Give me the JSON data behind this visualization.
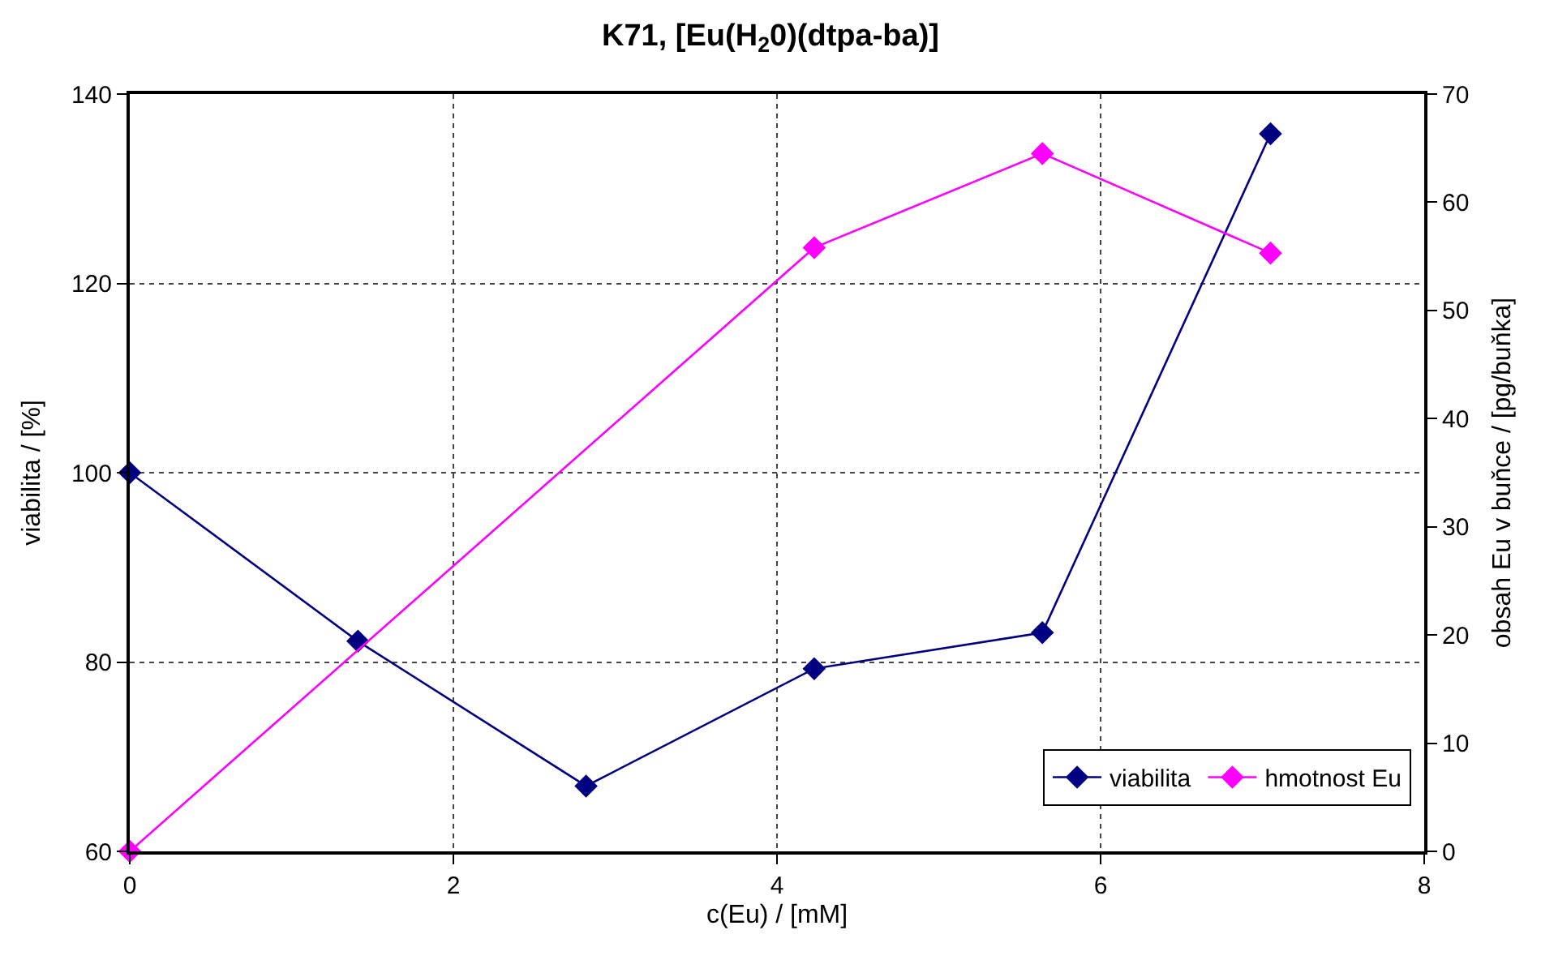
{
  "chart_data": {
    "type": "line",
    "title": "K71, [Eu(H$_{2}$0)(dtpa-ba)]",
    "xlabel": "c(Eu) / [mM]",
    "ylabel": "viabilita / [%]",
    "y2label": "obsah Eu v buňce / [pg/buňka]",
    "x": [
      0,
      1.41,
      2.82,
      4.23,
      5.64,
      7.05
    ],
    "series": [
      {
        "name": "viabilita",
        "color": "#000080",
        "values": [
          100,
          82.2,
          66.9,
          79.3,
          83.1,
          135.8
        ]
      },
      {
        "name": "hmotnost Eu",
        "color": "#ff00ff",
        "axis": "y2",
        "x": [
          0,
          4.23,
          5.64,
          7.05
        ],
        "values": [
          0,
          55.8,
          64.5,
          55.3
        ]
      }
    ],
    "xlim": [
      0,
      8
    ],
    "xticks": [
      0,
      2,
      4,
      6,
      8
    ],
    "ylim": [
      60,
      140
    ],
    "yticks": [
      60,
      80,
      100,
      120,
      140
    ],
    "y2lim": [
      0,
      70
    ],
    "y2ticks": [
      0,
      10,
      20,
      30,
      40,
      50,
      60,
      70
    ],
    "grid": true,
    "legend": "bottom right",
    "marker": "diamond",
    "line_style": "solid"
  }
}
